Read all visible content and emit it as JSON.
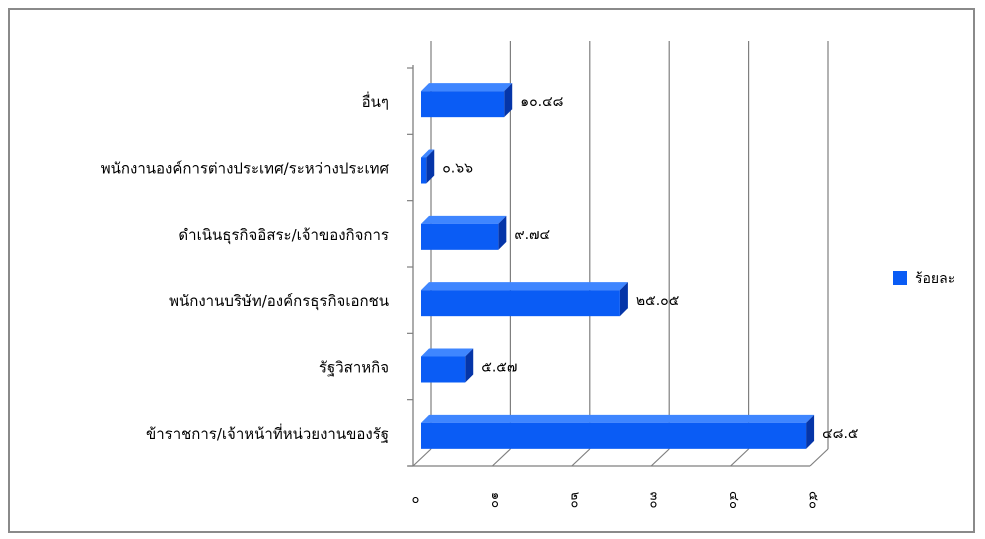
{
  "chart_data": {
    "type": "bar",
    "orientation": "horizontal",
    "style": "3d",
    "categories": [
      "อื่นๆ",
      "พนักงานองค์การต่างประเทศ/ระหว่างประเทศ",
      "ดำเนินธุรกิจอิสระ/เจ้าของกิจการ",
      "พนักงานบริษัท/องค์กรธุรกิจเอกชน",
      "รัฐวิสาหกิจ",
      "ข้าราชการ/เจ้าหน้าที่หน่วยงานของรัฐ"
    ],
    "series": [
      {
        "name": "ร้อยละ",
        "values": [
          10.48,
          0.66,
          9.74,
          25.05,
          5.57,
          48.5
        ],
        "labels": [
          "๑๐.๔๘",
          "๐.๖๖",
          "๙.๗๔",
          "๒๕.๐๕",
          "๕.๕๗",
          "๔๘.๕"
        ]
      }
    ],
    "xlim": [
      0,
      50
    ],
    "xticks": [
      0,
      10,
      20,
      30,
      40,
      50
    ],
    "xtick_labels": [
      "๐",
      "๑๐",
      "๒๐",
      "๓๐",
      "๔๐",
      "๕๐"
    ],
    "grid": true,
    "legend_position": "right",
    "colors": {
      "bar_front": "#0a5cf5",
      "bar_top": "#3f86ff",
      "bar_side": "#0535a8",
      "gridline": "#7f7f7f",
      "frame": "#8a8a8a"
    }
  }
}
